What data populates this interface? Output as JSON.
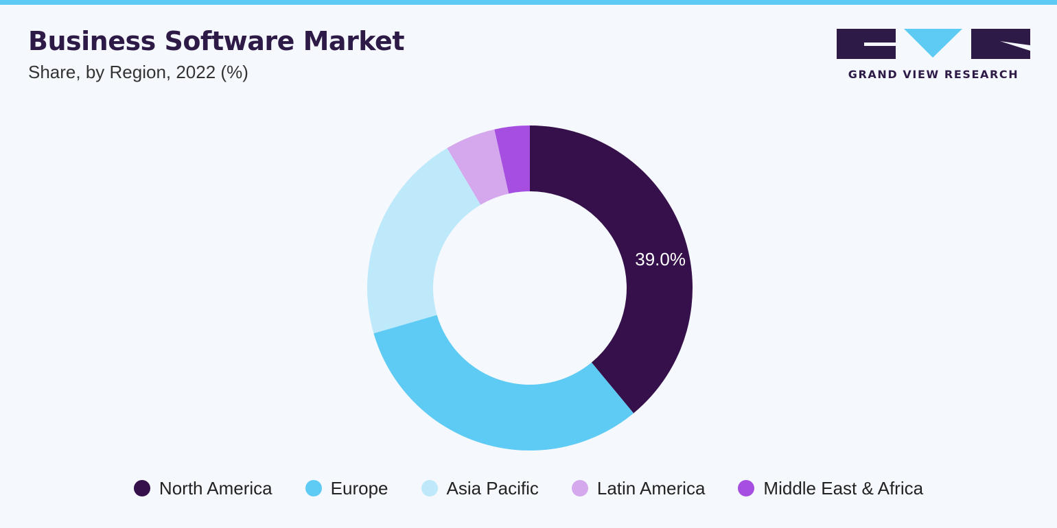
{
  "header": {
    "title": "Business Software Market",
    "subtitle": "Share, by Region, 2022 (%)"
  },
  "brand": {
    "logo_text": "GRAND VIEW RESEARCH",
    "colors": {
      "logo_dark": "#2e1a47",
      "logo_accent": "#5ecbf5",
      "top_bar": "#5ecbf5"
    }
  },
  "chart_data": {
    "type": "pie",
    "variant": "donut",
    "title": "Business Software Market",
    "subtitle": "Share, by Region, 2022 (%)",
    "categories": [
      "North America",
      "Europe",
      "Asia Pacific",
      "Latin America",
      "Middle East & Africa"
    ],
    "values": [
      39.0,
      31.5,
      21.0,
      5.0,
      3.5
    ],
    "colors": [
      "#35104a",
      "#5ecbf5",
      "#bde9fa",
      "#d5a8ee",
      "#a64ee0"
    ],
    "data_labels": [
      {
        "category": "North America",
        "text": "39.0%"
      }
    ],
    "legend_position": "bottom"
  }
}
